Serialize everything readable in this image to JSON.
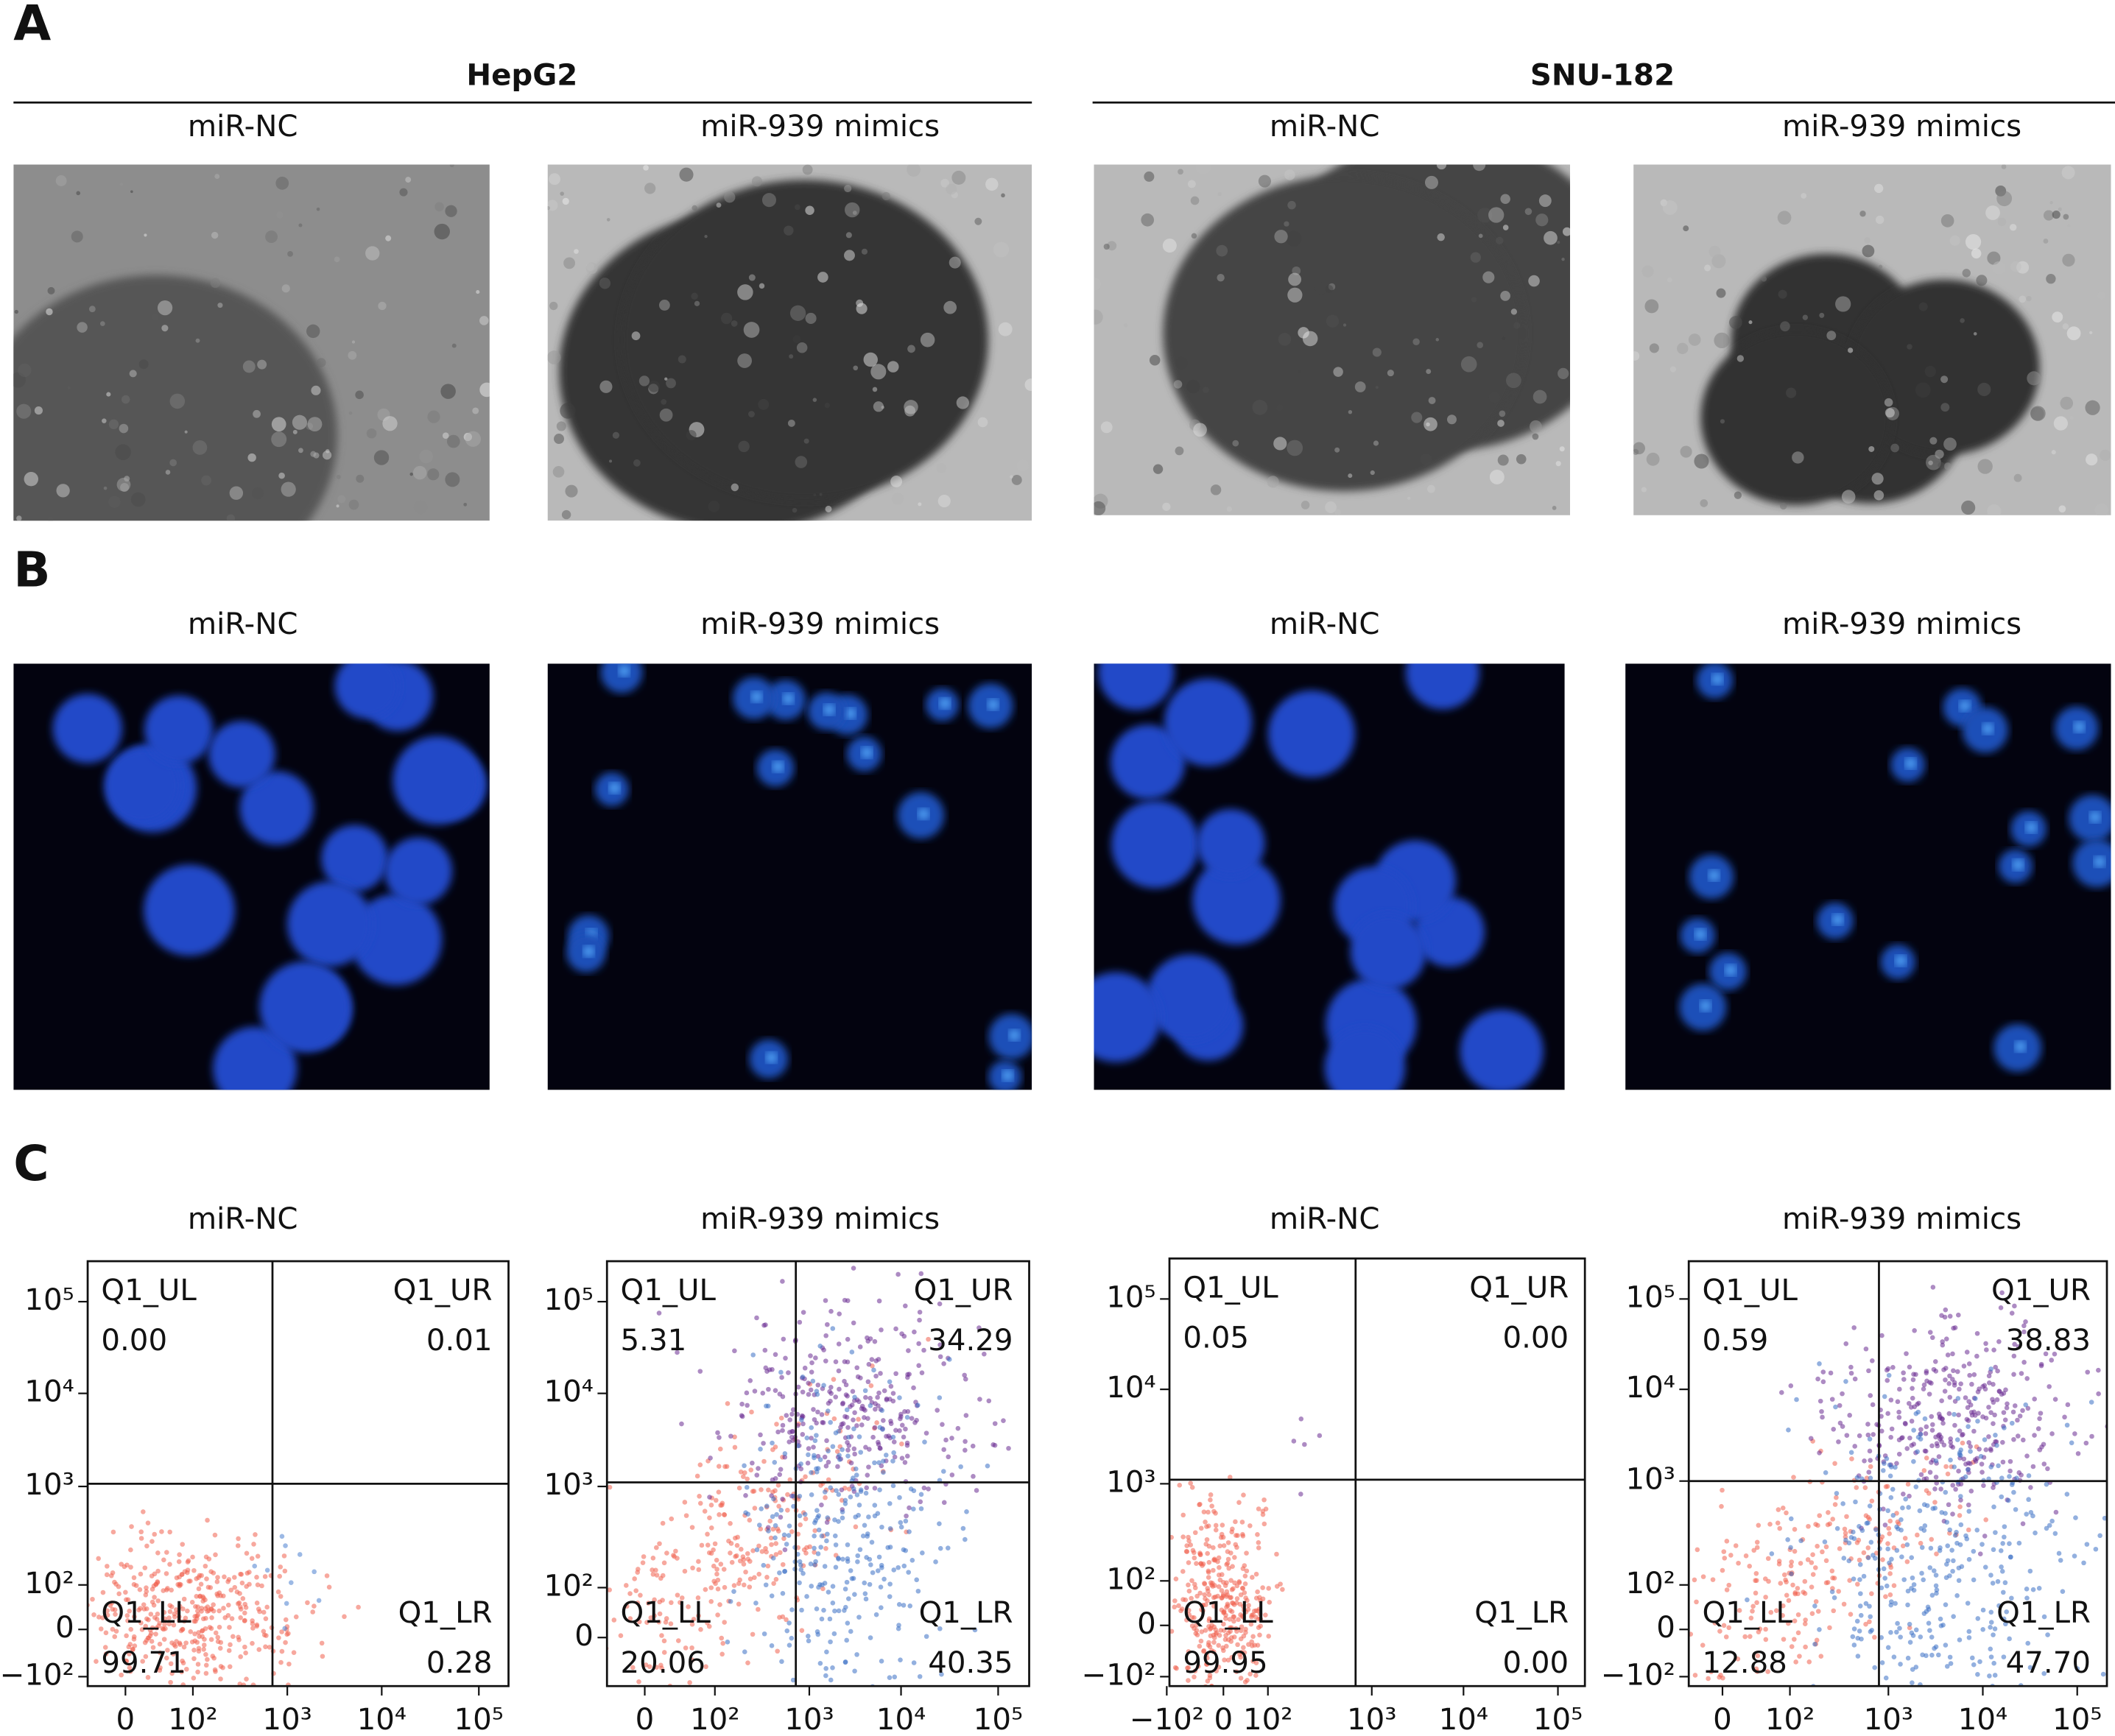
{
  "panel_a": {
    "label": "A",
    "groups": [
      "HepG2",
      "SNU-182"
    ],
    "columns": [
      "miR-NC",
      "miR-939 mimics",
      "miR-NC",
      "miR-939 mimics"
    ]
  },
  "panel_b": {
    "label": "B",
    "columns": [
      "miR-NC",
      "miR-939 mimics",
      "miR-NC",
      "miR-939 mimics"
    ]
  },
  "panel_c": {
    "label": "C",
    "plots": [
      {
        "title": "miR-NC",
        "quadrants": [
          {
            "name": "Q1_UL",
            "value": "0.00"
          },
          {
            "name": "Q1_UR",
            "value": "0.01"
          },
          {
            "name": "Q1_LL",
            "value": "99.71"
          },
          {
            "name": "Q1_LR",
            "value": "0.28"
          }
        ],
        "y_ticks": [
          "10⁵",
          "10⁴",
          "10³",
          "10²",
          "0",
          "−10²"
        ],
        "x_ticks": [
          "0",
          "10²",
          "10³",
          "10⁴",
          "10⁵"
        ]
      },
      {
        "title": "miR-939 mimics",
        "quadrants": [
          {
            "name": "Q1_UL",
            "value": "5.31"
          },
          {
            "name": "Q1_UR",
            "value": "34.29"
          },
          {
            "name": "Q1_LL",
            "value": "20.06"
          },
          {
            "name": "Q1_LR",
            "value": "40.35"
          }
        ],
        "y_ticks": [
          "10⁵",
          "10⁴",
          "10³",
          "10²",
          "0"
        ],
        "x_ticks": [
          "0",
          "10²",
          "10³",
          "10⁴",
          "10⁵"
        ]
      },
      {
        "title": "miR-NC",
        "quadrants": [
          {
            "name": "Q1_UL",
            "value": "0.05"
          },
          {
            "name": "Q1_UR",
            "value": "0.00"
          },
          {
            "name": "Q1_LL",
            "value": "99.95"
          },
          {
            "name": "Q1_LR",
            "value": "0.00"
          }
        ],
        "y_ticks": [
          "10⁵",
          "10⁴",
          "10³",
          "10²",
          "0",
          "−10²"
        ],
        "x_ticks": [
          "−10²",
          "0",
          "10²",
          "10³",
          "10⁴",
          "10⁵"
        ]
      },
      {
        "title": "miR-939 mimics",
        "quadrants": [
          {
            "name": "Q1_UL",
            "value": "0.59"
          },
          {
            "name": "Q1_UR",
            "value": "38.83"
          },
          {
            "name": "Q1_LL",
            "value": "12.88"
          },
          {
            "name": "Q1_LR",
            "value": "47.70"
          }
        ],
        "y_ticks": [
          "10⁵",
          "10⁴",
          "10³",
          "10²",
          "0",
          "−10²"
        ],
        "x_ticks": [
          "0",
          "10²",
          "10³",
          "10⁴",
          "10⁵"
        ]
      }
    ]
  }
}
